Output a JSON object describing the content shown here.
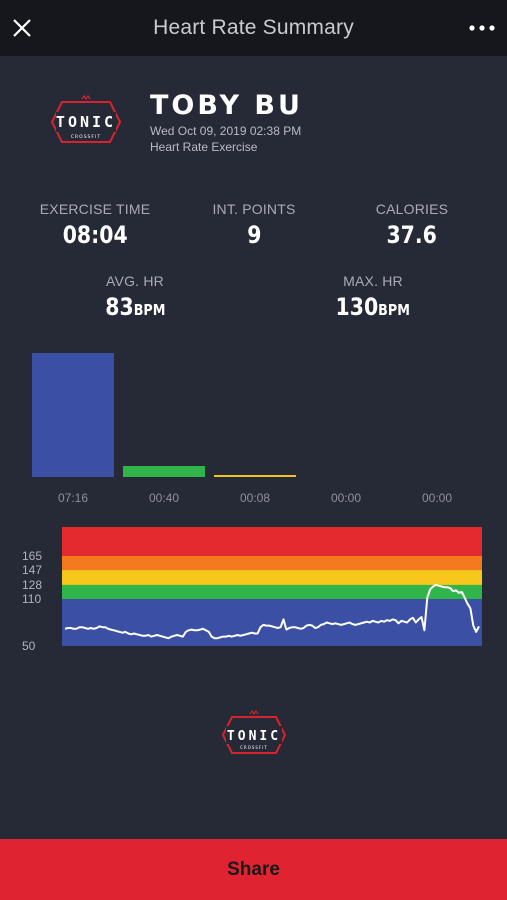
{
  "topbar": {
    "title": "Heart Rate Summary",
    "close_icon": "close-icon",
    "more_icon": "more-dots-icon"
  },
  "header": {
    "logo_text": "TONIC",
    "logo_subtext": "CROSSFIT",
    "name": "TOBY BU",
    "date": "Wed Oct 09, 2019 02:38 PM",
    "workout": "Heart Rate Exercise"
  },
  "stats": {
    "exercise_time": {
      "label": "EXERCISE TIME",
      "value": "08:04"
    },
    "int_points": {
      "label": "INT. POINTS",
      "value": "9"
    },
    "calories": {
      "label": "CALORIES",
      "value": "37.6"
    },
    "avg_hr": {
      "label": "AVG. HR",
      "value": "83",
      "unit": "BPM"
    },
    "max_hr": {
      "label": "MAX. HR",
      "value": "130",
      "unit": "BPM"
    }
  },
  "chart_data": [
    {
      "type": "bar",
      "title": "",
      "categories": [
        "07:16",
        "00:40",
        "00:08",
        "00:00",
        "00:00"
      ],
      "values": [
        436,
        40,
        8,
        0,
        0
      ],
      "colors": [
        "#3b4fa5",
        "#2fb54a",
        "#f2c318",
        "#f47a20",
        "#e52a2f"
      ],
      "ylim": [
        0,
        436
      ]
    },
    {
      "type": "line",
      "title": "",
      "xlabel": "",
      "ylabel": "",
      "y_ticks": [
        "165",
        "147",
        "128",
        "110",
        "50"
      ],
      "zones": [
        {
          "from": 50,
          "to": 110,
          "color": "#3b4fa5"
        },
        {
          "from": 110,
          "to": 128,
          "color": "#2fb54a"
        },
        {
          "from": 128,
          "to": 147,
          "color": "#f7c81b"
        },
        {
          "from": 147,
          "to": 165,
          "color": "#f47a20"
        },
        {
          "from": 165,
          "to": 202,
          "color": "#e52a2f"
        }
      ],
      "ylim": [
        50,
        202
      ],
      "line_color": "#ffffff",
      "series": [
        {
          "values": [
            72,
            73,
            73,
            72,
            72,
            74,
            74,
            73,
            72,
            73,
            72,
            73,
            75,
            74,
            74,
            72,
            71,
            70,
            69,
            68,
            67,
            68,
            66,
            65,
            66,
            65,
            64,
            63,
            63,
            64,
            62,
            63,
            64,
            63,
            62,
            61,
            60,
            62,
            63,
            64,
            63,
            62,
            68,
            70,
            71,
            70,
            70,
            71,
            72,
            70,
            68,
            62,
            60,
            60,
            61,
            62,
            62,
            63,
            62,
            63,
            64,
            63,
            64,
            65,
            66,
            67,
            66,
            66,
            74,
            77,
            76,
            76,
            75,
            74,
            73,
            74,
            84,
            71,
            73,
            74,
            74,
            73,
            72,
            73,
            76,
            77,
            76,
            73,
            74,
            77,
            78,
            80,
            79,
            78,
            79,
            78,
            77,
            78,
            79,
            80,
            78,
            77,
            78,
            79,
            80,
            81,
            80,
            82,
            81,
            80,
            82,
            81,
            83,
            82,
            84,
            83,
            79,
            82,
            81,
            80,
            84,
            86,
            80,
            84,
            87,
            70,
            112,
            122,
            126,
            128,
            127,
            126,
            125,
            125,
            124,
            120,
            121,
            118,
            119,
            112,
            104,
            98,
            76,
            68,
            75
          ]
        }
      ]
    }
  ],
  "footer": {
    "logo_text": "TONIC",
    "logo_subtext": "CROSSFIT",
    "share_label": "Share"
  }
}
